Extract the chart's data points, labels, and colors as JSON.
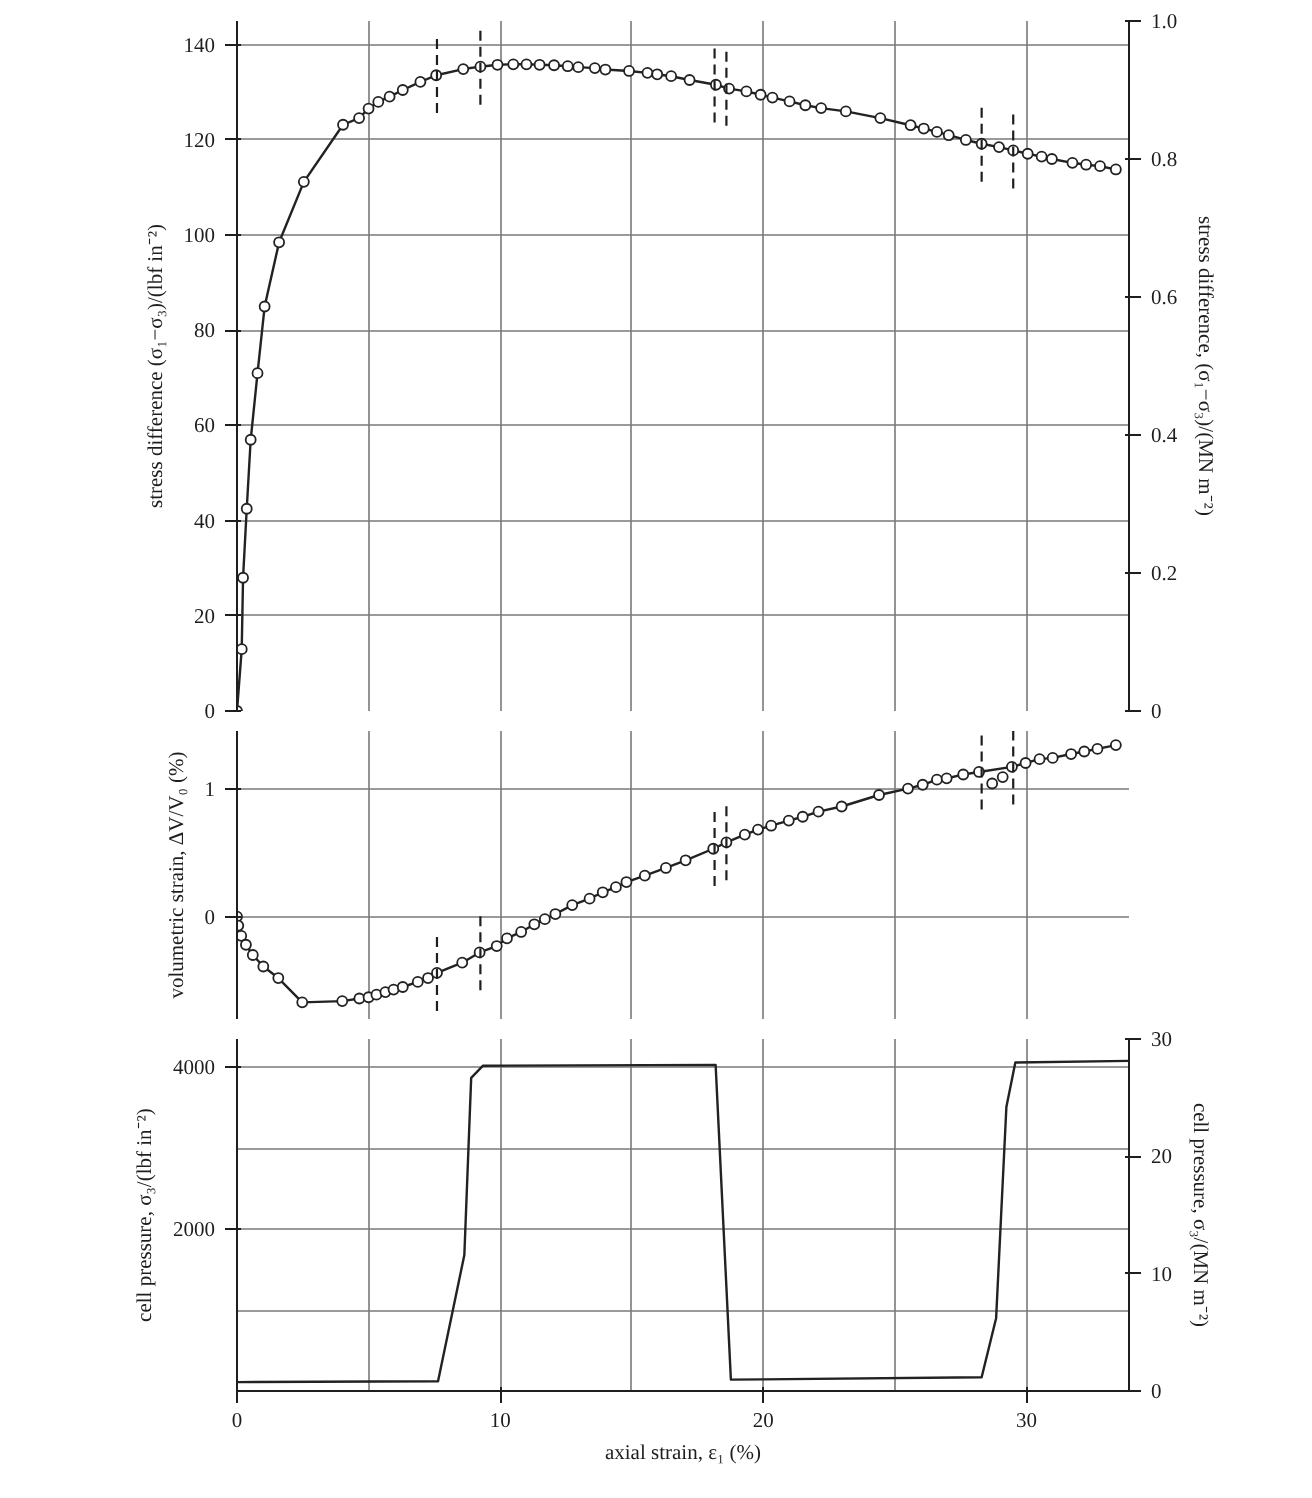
{
  "chart_data": [
    {
      "type": "line",
      "ylabel": "stress difference (σ₁−σ₃)/(lbf in⁻²)",
      "y2label": "stress difference, (σ₁−σ₃)/(MN m⁻²)",
      "xlim": [
        0,
        33.9
      ],
      "xticks": [
        0,
        {
          "value": 5,
          "label": null
        },
        10,
        {
          "value": 15,
          "label": null
        },
        20,
        {
          "value": 25,
          "label": null
        },
        30
      ],
      "ylim": [
        0,
        145
      ],
      "yticks": [
        0,
        20,
        40,
        60,
        80,
        100,
        120,
        140
      ],
      "y2lim": [
        0,
        1
      ],
      "y2ticks": [
        0,
        0.2,
        0.4,
        0.6,
        0.8,
        {
          "value": 1,
          "label": "1.0"
        }
      ],
      "tick_labels": "y",
      "grid": true,
      "marker": "circle",
      "line_style": "solid",
      "series": [
        {
          "color": "#222222",
          "x": [
            0,
            0.18,
            0.23,
            0.37,
            0.52,
            0.78,
            1.05,
            1.6,
            2.54,
            4.03,
            4.64,
            5.0,
            5.37,
            5.8,
            6.3,
            6.97,
            7.57,
            8.6,
            9.25,
            9.9,
            10.5,
            11.0,
            11.5,
            12.05,
            12.57,
            12.97,
            13.6,
            14.0,
            14.9,
            15.6,
            15.97,
            16.5,
            17.2,
            18.2,
            18.7,
            19.36,
            19.9,
            20.35,
            21.0,
            21.6,
            22.2,
            23.14,
            24.45,
            25.6,
            26.1,
            26.6,
            27.05,
            27.7,
            28.3,
            28.96,
            29.5,
            30.05,
            30.58,
            30.97,
            31.75,
            32.27,
            32.8,
            33.4
          ],
          "values": [
            0,
            13,
            28,
            42.5,
            57,
            71,
            85,
            98.5,
            111.2,
            123.2,
            124.6,
            126.6,
            128,
            129.1,
            130.5,
            132.2,
            133.6,
            134.9,
            135.4,
            135.8,
            135.9,
            135.9,
            135.8,
            135.7,
            135.5,
            135.3,
            135.1,
            134.8,
            134.5,
            134.1,
            133.8,
            133.4,
            132.6,
            131.6,
            130.8,
            130.2,
            129.5,
            128.9,
            128.1,
            127.3,
            126.7,
            126.0,
            124.6,
            123.1,
            122.4,
            121.7,
            121.0,
            120.0,
            119.2,
            118.5,
            117.8,
            117.1,
            116.5,
            116.0,
            115.2,
            114.8,
            114.5,
            113.8
          ]
        }
      ],
      "ref_lines": [
        {
          "axis": "x",
          "value": 7.6,
          "line_style": "dashed"
        },
        {
          "axis": "x",
          "value": 9.25,
          "line_style": "dashed"
        },
        {
          "axis": "x",
          "value": 18.15,
          "line_style": "dashed"
        },
        {
          "axis": "x",
          "value": 18.6,
          "line_style": "dashed"
        },
        {
          "axis": "x",
          "value": 28.3,
          "line_style": "dashed"
        },
        {
          "axis": "x",
          "value": 29.5,
          "line_style": "dashed"
        }
      ]
    },
    {
      "type": "line",
      "ylabel": "volumetric strain, ΔV/V₀ (%)",
      "xlim": [
        0,
        33.9
      ],
      "xticks": [
        0,
        {
          "value": 5,
          "label": null
        },
        10,
        {
          "value": 15,
          "label": null
        },
        20,
        {
          "value": 25,
          "label": null
        },
        30
      ],
      "ylim": [
        -0.8,
        1.45
      ],
      "yticks": [
        0,
        1
      ],
      "tick_labels": "y",
      "grid": true,
      "marker": "circle",
      "line_style": "solid",
      "series": [
        {
          "color": "#222222",
          "x": [
            0,
            0.05,
            0.16,
            0.34,
            0.6,
            1.0,
            1.57,
            2.48,
            4.0,
            4.65,
            5.0,
            5.3,
            5.64,
            5.95,
            6.3,
            6.87,
            7.26,
            7.6,
            8.56,
            9.22,
            9.87,
            10.26,
            10.8,
            11.3,
            11.7,
            12.1,
            12.74,
            13.4,
            13.9,
            14.4,
            14.8,
            15.5,
            16.3,
            17.05,
            18.1,
            18.6,
            19.3,
            19.8,
            20.3,
            20.97,
            21.5,
            22.1,
            22.98,
            24.4,
            25.5,
            26.06,
            26.6,
            26.97,
            27.6,
            28.2,
            29.45,
            29.97,
            30.5,
            31.0,
            31.7,
            32.2,
            32.7,
            33.4
          ],
          "values": [
            0,
            -0.07,
            -0.15,
            -0.22,
            -0.3,
            -0.39,
            -0.48,
            -0.67,
            -0.66,
            -0.64,
            -0.63,
            -0.61,
            -0.59,
            -0.57,
            -0.55,
            -0.51,
            -0.48,
            -0.44,
            -0.36,
            -0.28,
            -0.23,
            -0.17,
            -0.12,
            -0.06,
            -0.02,
            0.02,
            0.09,
            0.14,
            0.19,
            0.23,
            0.27,
            0.32,
            0.38,
            0.44,
            0.53,
            0.58,
            0.64,
            0.68,
            0.71,
            0.75,
            0.78,
            0.82,
            0.86,
            0.95,
            1.0,
            1.03,
            1.07,
            1.08,
            1.11,
            1.13,
            1.17,
            1.2,
            1.23,
            1.24,
            1.27,
            1.29,
            1.31,
            1.34
          ]
        },
        {
          "type": "scatter",
          "color": "#222222",
          "x": [
            28.7,
            29.1
          ],
          "values": [
            1.04,
            1.09
          ]
        }
      ],
      "ref_lines": [
        {
          "axis": "x",
          "value": 7.6,
          "line_style": "dashed"
        },
        {
          "axis": "x",
          "value": 9.25,
          "line_style": "dashed"
        },
        {
          "axis": "x",
          "value": 18.15,
          "line_style": "dashed"
        },
        {
          "axis": "x",
          "value": 18.6,
          "line_style": "dashed"
        },
        {
          "axis": "x",
          "value": 28.3,
          "line_style": "dashed"
        },
        {
          "axis": "x",
          "value": 29.5,
          "line_style": "dashed"
        }
      ]
    },
    {
      "type": "line",
      "xlabel": "axial strain, ε₁ (%)",
      "ylabel": "cell pressure, σ₃/(lbf in⁻²)",
      "y2label": "cell pressure, σ₃/(MN m⁻²)",
      "xlim": [
        0,
        33.9
      ],
      "xticks": [
        0,
        {
          "value": 5,
          "label": null
        },
        10,
        {
          "value": 15,
          "label": null
        },
        20,
        {
          "value": 25,
          "label": null
        },
        30
      ],
      "ylim": [
        0,
        4350
      ],
      "yticks": [
        {
          "value": 0,
          "label": null
        },
        {
          "value": 1000,
          "label": null
        },
        2000,
        {
          "value": 3000,
          "label": null
        },
        4000
      ],
      "y2lim": [
        0,
        30
      ],
      "y2ticks": [
        0,
        10,
        20,
        30
      ],
      "grid": true,
      "line_style": "solid",
      "series": [
        {
          "color": "#222222",
          "x": [
            0,
            7.64,
            8.64,
            8.9,
            9.35,
            18.19,
            18.77,
            28.3,
            28.85,
            29.24,
            29.58,
            33.9
          ],
          "values": [
            110,
            120,
            1680,
            3870,
            4020,
            4030,
            140,
            170,
            900,
            3510,
            4060,
            4080
          ]
        }
      ]
    }
  ]
}
